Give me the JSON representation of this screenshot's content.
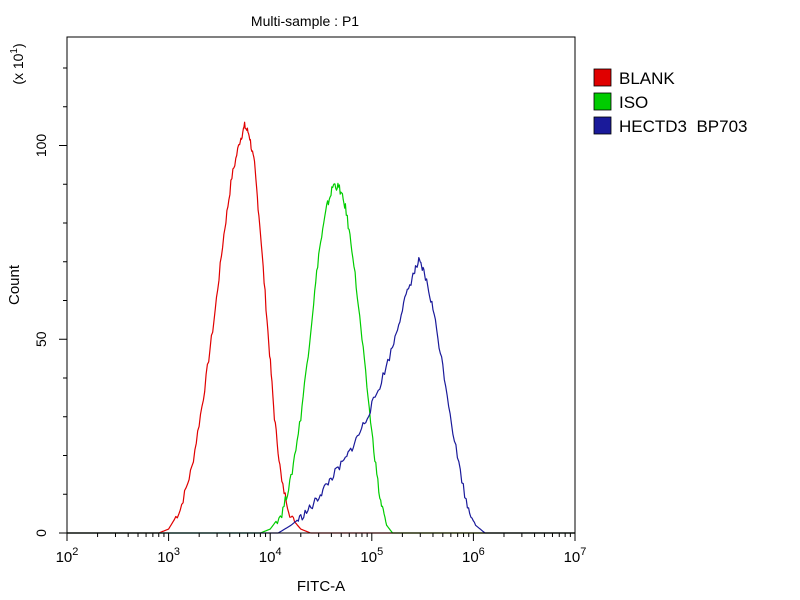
{
  "chart_data": {
    "type": "line",
    "title": "Multi-sample : P1",
    "xlabel": "FITC-A",
    "ylabel": "Count",
    "y_multiplier_label": "(x 10",
    "y_multiplier_exponent": "1",
    "x_scale": "log10",
    "xlim": [
      100,
      10000000
    ],
    "ylim": [
      0,
      128
    ],
    "x_ticks": [
      {
        "base": "10",
        "exp": "2",
        "value": 100
      },
      {
        "base": "10",
        "exp": "3",
        "value": 1000
      },
      {
        "base": "10",
        "exp": "4",
        "value": 10000
      },
      {
        "base": "10",
        "exp": "5",
        "value": 100000
      },
      {
        "base": "10",
        "exp": "6",
        "value": 1000000
      },
      {
        "base": "10",
        "exp": "7",
        "value": 10000000
      }
    ],
    "y_ticks": [
      {
        "label": "0",
        "value": 0
      },
      {
        "label": "50",
        "value": 50
      },
      {
        "label": "100",
        "value": 100
      }
    ],
    "grid": false,
    "legend_position": "right",
    "series": [
      {
        "name": "BLANK",
        "color": "#e00000",
        "x": [
          800,
          1000,
          1300,
          1700,
          2200,
          2800,
          3500,
          4200,
          5000,
          5600,
          6200,
          7000,
          8000,
          9500,
          11000,
          13000,
          16000,
          20000,
          25000
        ],
        "y": [
          0,
          1,
          6,
          17,
          35,
          55,
          77,
          92,
          101,
          105,
          103,
          95,
          78,
          52,
          30,
          13,
          4,
          1,
          0
        ]
      },
      {
        "name": "ISO",
        "color": "#00cc00",
        "x": [
          8000,
          10000,
          13000,
          16000,
          20000,
          25000,
          30000,
          36000,
          42000,
          48000,
          55000,
          65000,
          80000,
          100000,
          120000,
          140000,
          160000
        ],
        "y": [
          0,
          1,
          5,
          14,
          30,
          52,
          72,
          84,
          90,
          89,
          84,
          72,
          50,
          26,
          9,
          2,
          0
        ]
      },
      {
        "name": "HECTD3  BP703",
        "color": "#1a1a9a",
        "x": [
          12000,
          16000,
          20000,
          26000,
          33000,
          42000,
          55000,
          70000,
          90000,
          120000,
          160000,
          200000,
          250000,
          290000,
          330000,
          400000,
          500000,
          650000,
          850000,
          1050000,
          1300000
        ],
        "y": [
          0,
          2,
          4,
          7,
          11,
          15,
          19,
          24,
          30,
          38,
          48,
          58,
          66,
          70,
          67,
          58,
          43,
          24,
          8,
          2,
          0
        ]
      }
    ]
  }
}
